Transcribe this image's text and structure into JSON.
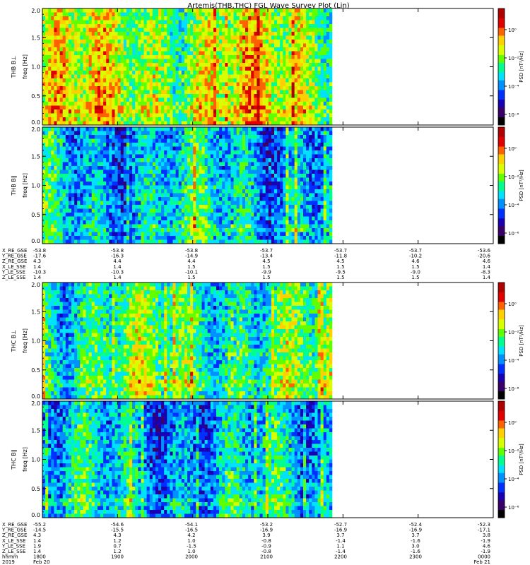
{
  "title": "Artemis(THB,THC) FGL Wave Survey Plot (Lin)",
  "colormap": [
    "#000000",
    "#3a006a",
    "#1a00b0",
    "#0030ff",
    "#0090ff",
    "#00e0ff",
    "#00ff90",
    "#60ff00",
    "#d8ff00",
    "#ffd000",
    "#ff6000",
    "#e00000",
    "#b00000"
  ],
  "panels": [
    {
      "id": "thb-bperp",
      "probe": "THB",
      "ylabel_top": "THB B⊥",
      "ylabel_freq": "freq [Hz]",
      "yticks": [
        "2.0",
        "1.5",
        "1.0",
        "0.5",
        "0.0"
      ],
      "ylim": [
        0,
        2.0
      ],
      "cbar_label": "PSD [nT²/Hz]",
      "cbar_ticks": [
        "10⁰",
        "10⁻²",
        "10⁻⁴",
        "10⁻⁶"
      ],
      "mean_level": 0.6
    },
    {
      "id": "thb-bpar",
      "probe": "THB",
      "ylabel_top": "THB B∥",
      "ylabel_freq": "freq [Hz]",
      "yticks": [
        "2.0",
        "1.5",
        "1.0",
        "0.5",
        "0.0"
      ],
      "ylim": [
        0,
        2.0
      ],
      "cbar_label": "PSD [nT²/Hz]",
      "cbar_ticks": [
        "10⁰",
        "10⁻²",
        "10⁻⁴",
        "10⁻⁶"
      ],
      "mean_level": 0.38
    },
    {
      "id": "thc-bperp",
      "probe": "THC",
      "ylabel_top": "THC B⊥",
      "ylabel_freq": "freq [Hz]",
      "yticks": [
        "2.0",
        "1.5",
        "1.0",
        "0.5",
        "0.0"
      ],
      "ylim": [
        0,
        2.0
      ],
      "cbar_label": "PSD [nT²/Hz]",
      "cbar_ticks": [
        "10⁰",
        "10⁻²",
        "10⁻⁴",
        "10⁻⁶"
      ],
      "mean_level": 0.48
    },
    {
      "id": "thc-bpar",
      "probe": "THC",
      "ylabel_top": "THC B∥",
      "ylabel_freq": "freq [Hz]",
      "yticks": [
        "2.0",
        "1.5",
        "1.0",
        "0.5",
        "0.0"
      ],
      "ylim": [
        0,
        2.0
      ],
      "cbar_label": "PSD [nT²/Hz]",
      "cbar_ticks": [
        "10⁰",
        "10⁻²",
        "10⁻⁴",
        "10⁻⁶"
      ],
      "mean_level": 0.36
    }
  ],
  "ephem_thb": {
    "labels": [
      "X_RE_GSE",
      "Y_RE_GSE",
      "Z_RE_GSE",
      "X_LE_SSE",
      "Y_LE_SSE",
      "Z_LE_SSE"
    ],
    "rows": [
      [
        "-53.8",
        "-53.8",
        "-53.8",
        "-53.7",
        "-53.7",
        "-53.7",
        "-53.6"
      ],
      [
        "-17.6",
        "-16.3",
        "-14.9",
        "-13.4",
        "-11.8",
        "-10.2",
        "-20.6"
      ],
      [
        "4.3",
        "4.4",
        "4.4",
        "4.5",
        "4.5",
        "4.6",
        "4.6"
      ],
      [
        "1.4",
        "1.4",
        "1.5",
        "1.5",
        "1.5",
        "1.5",
        "1.4"
      ],
      [
        "-10.3",
        "-10.3",
        "-10.1",
        "-9.9",
        "-9.5",
        "-9.0",
        "-8.3"
      ],
      [
        "1.4",
        "1.4",
        "1.5",
        "1.5",
        "1.5",
        "1.5",
        "1.4"
      ]
    ]
  },
  "ephem_thc": {
    "labels": [
      "X_RE_GSE",
      "Y_RE_GSE",
      "Z_RE_GSE",
      "X_LE_SSE",
      "Y_LE_SSE",
      "Z_LE_SSE",
      "hhmm",
      "2019"
    ],
    "rows": [
      [
        "-55.2",
        "-54.6",
        "-54.1",
        "-53.2",
        "-52.7",
        "-52.4",
        "-52.3"
      ],
      [
        "-14.5",
        "-15.5",
        "-16.5",
        "-16.9",
        "-16.9",
        "-16.9",
        "-17.1"
      ],
      [
        "4.3",
        "4.3",
        "4.2",
        "3.9",
        "3.7",
        "3.7",
        "3.8"
      ],
      [
        "1.4",
        "1.2",
        "1.0",
        "-0.8",
        "-1.4",
        "-1.6",
        "-1.9"
      ],
      [
        "1.9",
        "0.7",
        "-1.5",
        "-0.9",
        "1.1",
        "3.0",
        "4.6"
      ],
      [
        "1.4",
        "1.2",
        "1.0",
        "-0.8",
        "-1.4",
        "-1.6",
        "-1.9"
      ],
      [
        "1800",
        "1900",
        "2000",
        "2100",
        "2200",
        "2300",
        "0000"
      ],
      [
        "Feb 20",
        "",
        "",
        "",
        "",
        "",
        "Feb 21"
      ]
    ]
  },
  "chart_data": [
    {
      "type": "heatmap",
      "title": "Artemis(THB,THC) FGL Wave Survey Plot (Lin)",
      "ylabel": "THB B⊥ freq [Hz]",
      "ylim": [
        0,
        2.0
      ],
      "x": [
        "1800",
        "1900",
        "2000",
        "2100",
        "2200",
        "2300",
        "0000"
      ],
      "x_data_extent": [
        "1800",
        "2200"
      ],
      "colorbar_label": "PSD [nT²/Hz]"
    },
    {
      "type": "heatmap",
      "ylabel": "THB B∥ freq [Hz]",
      "ylim": [
        0,
        2.0
      ],
      "x": [
        "1800",
        "1900",
        "2000",
        "2100",
        "2200",
        "2300",
        "0000"
      ],
      "x_data_extent": [
        "1800",
        "2200"
      ],
      "colorbar_label": "PSD [nT²/Hz]"
    },
    {
      "type": "heatmap",
      "ylabel": "THC B⊥ freq [Hz]",
      "ylim": [
        0,
        2.0
      ],
      "x": [
        "1800",
        "1900",
        "2000",
        "2100",
        "2200",
        "2300",
        "0000"
      ],
      "x_data_extent": [
        "1800",
        "2200"
      ],
      "colorbar_label": "PSD [nT²/Hz]"
    },
    {
      "type": "heatmap",
      "ylabel": "THC B∥ freq [Hz]",
      "ylim": [
        0,
        2.0
      ],
      "x": [
        "1800",
        "1900",
        "2000",
        "2100",
        "2200",
        "2300",
        "0000"
      ],
      "x_data_extent": [
        "1800",
        "2200"
      ],
      "colorbar_label": "PSD [nT²/Hz]"
    }
  ]
}
